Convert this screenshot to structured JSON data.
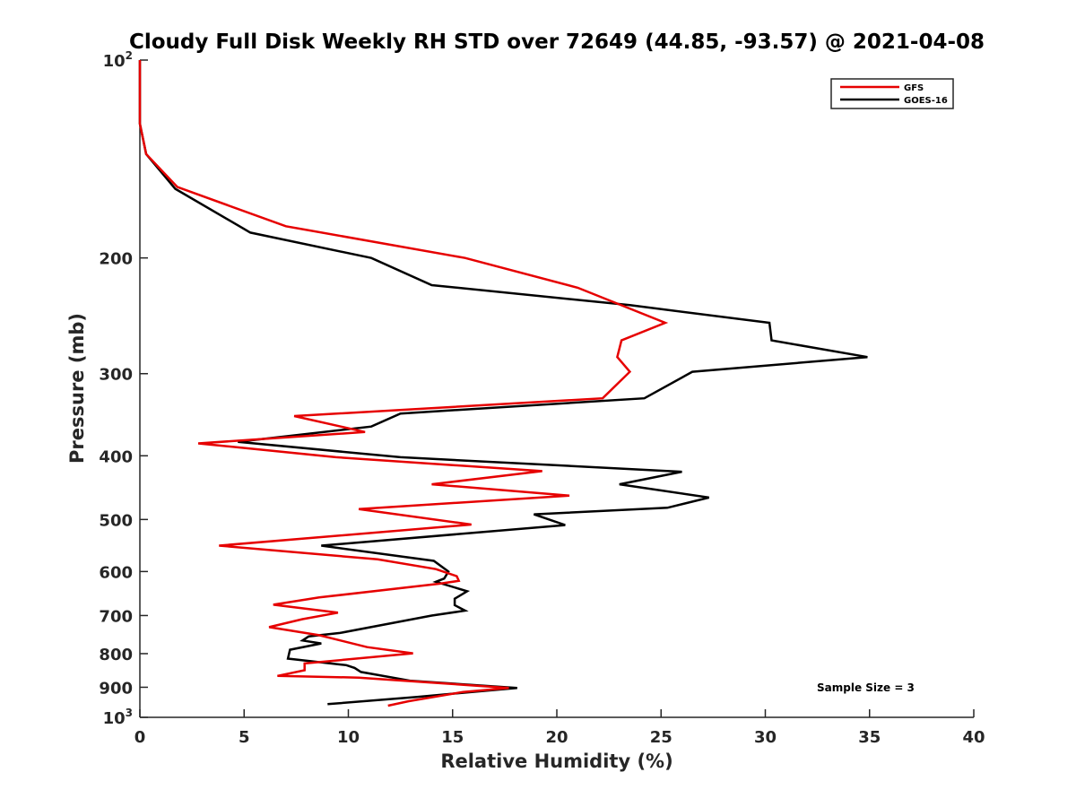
{
  "chart_data": {
    "type": "line",
    "title": "Cloudy Full Disk Weekly RH STD over 72649 (44.85, -93.57) @ 2021-04-08",
    "xlabel": "Relative Humidity (%)",
    "ylabel": "Pressure (mb)",
    "xlim": [
      0,
      40
    ],
    "ylim": [
      1000,
      100
    ],
    "y_scale": "log",
    "y_reversed": true,
    "grid": false,
    "legend_position": "top-right",
    "x_ticks": [
      0,
      5,
      10,
      15,
      20,
      25,
      30,
      35,
      40
    ],
    "x_tick_labels": [
      "0",
      "5",
      "10",
      "15",
      "20",
      "25",
      "30",
      "35",
      "40"
    ],
    "y_ticks": [
      {
        "value": 100,
        "label": "10",
        "sup": "2"
      },
      {
        "value": 200,
        "label": "200",
        "sup": ""
      },
      {
        "value": 300,
        "label": "300",
        "sup": ""
      },
      {
        "value": 400,
        "label": "400",
        "sup": ""
      },
      {
        "value": 500,
        "label": "500",
        "sup": ""
      },
      {
        "value": 600,
        "label": "600",
        "sup": ""
      },
      {
        "value": 700,
        "label": "700",
        "sup": ""
      },
      {
        "value": 800,
        "label": "800",
        "sup": ""
      },
      {
        "value": 900,
        "label": "900",
        "sup": ""
      },
      {
        "value": 1000,
        "label": "10",
        "sup": "3"
      }
    ],
    "annotation": "Sample Size = 3",
    "series": [
      {
        "name": "GFS",
        "color": "#e60000",
        "points": [
          [
            0,
            100
          ],
          [
            0,
            125
          ],
          [
            0.3,
            139
          ],
          [
            1.8,
            156
          ],
          [
            7,
            179
          ],
          [
            15.6,
            200
          ],
          [
            21,
            222
          ],
          [
            25.2,
            251
          ],
          [
            23.1,
            267
          ],
          [
            22.9,
            283
          ],
          [
            23.5,
            298
          ],
          [
            22.2,
            327
          ],
          [
            7.4,
            348
          ],
          [
            10.8,
            368
          ],
          [
            2.8,
            383
          ],
          [
            9.4,
            402
          ],
          [
            19.3,
            422
          ],
          [
            14,
            442
          ],
          [
            20.6,
            460
          ],
          [
            10.5,
            482
          ],
          [
            15.9,
            509
          ],
          [
            3.8,
            548
          ],
          [
            11.4,
            575
          ],
          [
            14.2,
            595
          ],
          [
            15.2,
            610
          ],
          [
            15.3,
            620
          ],
          [
            14.4,
            626
          ],
          [
            8.6,
            657
          ],
          [
            6.4,
            674
          ],
          [
            9.5,
            693
          ],
          [
            7.8,
            709
          ],
          [
            6.2,
            729
          ],
          [
            8.6,
            750
          ],
          [
            10.9,
            782
          ],
          [
            13.1,
            799
          ],
          [
            7.9,
            828
          ],
          [
            7.9,
            848
          ],
          [
            6.6,
            865
          ],
          [
            10.5,
            870
          ],
          [
            17.7,
            902
          ],
          [
            15.5,
            915
          ],
          [
            12.9,
            945
          ],
          [
            11.9,
            960
          ]
        ]
      },
      {
        "name": "GOES-16",
        "color": "#000000",
        "points": [
          [
            0,
            100
          ],
          [
            0,
            125
          ],
          [
            0.3,
            139
          ],
          [
            1.7,
            157
          ],
          [
            5.3,
            183
          ],
          [
            11.1,
            200
          ],
          [
            14,
            220
          ],
          [
            23.5,
            236
          ],
          [
            30.2,
            251
          ],
          [
            30.3,
            267
          ],
          [
            34.9,
            283
          ],
          [
            26.5,
            298
          ],
          [
            24.2,
            327
          ],
          [
            12.5,
            345
          ],
          [
            11.1,
            361
          ],
          [
            4.7,
            381
          ],
          [
            12.5,
            402
          ],
          [
            26,
            423
          ],
          [
            23,
            442
          ],
          [
            27.3,
            463
          ],
          [
            25.3,
            480
          ],
          [
            18.9,
            491
          ],
          [
            20.4,
            510
          ],
          [
            8.7,
            548
          ],
          [
            14.1,
            578
          ],
          [
            14.8,
            600
          ],
          [
            14.6,
            615
          ],
          [
            14.2,
            622
          ],
          [
            15.7,
            643
          ],
          [
            15.1,
            660
          ],
          [
            15.1,
            675
          ],
          [
            15.6,
            688
          ],
          [
            14,
            700
          ],
          [
            9.6,
            744
          ],
          [
            8.1,
            753
          ],
          [
            7.8,
            764
          ],
          [
            8.7,
            772
          ],
          [
            7.2,
            789
          ],
          [
            7.1,
            814
          ],
          [
            9.9,
            833
          ],
          [
            10.3,
            841
          ],
          [
            10.6,
            853
          ],
          [
            13,
            880
          ],
          [
            18.1,
            902
          ],
          [
            13.3,
            931
          ],
          [
            9,
            955
          ]
        ]
      }
    ]
  }
}
